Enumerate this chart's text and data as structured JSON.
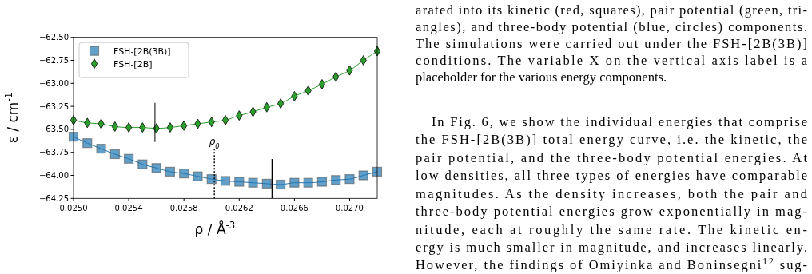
{
  "chart_data": {
    "type": "line",
    "xlabel": "ρ / Å$^{-3}$",
    "ylabel": "ε / cm$^{-1}$",
    "x": [
      0.025,
      0.0251,
      0.0252,
      0.0253,
      0.0254,
      0.0255,
      0.0256,
      0.0257,
      0.0258,
      0.0259,
      0.026,
      0.0261,
      0.0262,
      0.0263,
      0.0264,
      0.0265,
      0.0266,
      0.0267,
      0.0268,
      0.0269,
      0.027,
      0.0271,
      0.0272
    ],
    "series": [
      {
        "name": "FSH-[2B(3B)]",
        "color": "#1f77b4",
        "marker": "square",
        "values": [
          -63.58,
          -63.65,
          -63.71,
          -63.77,
          -63.82,
          -63.88,
          -63.92,
          -63.96,
          -63.98,
          -64.01,
          -64.04,
          -64.06,
          -64.07,
          -64.08,
          -64.09,
          -64.1,
          -64.08,
          -64.08,
          -64.07,
          -64.05,
          -64.04,
          -64.0,
          -63.96
        ]
      },
      {
        "name": "FSH-[2B]",
        "color": "#2ca02c",
        "marker": "diamond",
        "values": [
          -63.4,
          -63.43,
          -63.44,
          -63.47,
          -63.48,
          -63.48,
          -63.49,
          -63.48,
          -63.46,
          -63.44,
          -63.42,
          -63.4,
          -63.35,
          -63.31,
          -63.26,
          -63.22,
          -63.14,
          -63.08,
          -63.01,
          -62.93,
          -62.86,
          -62.75,
          -62.65
        ]
      }
    ],
    "xlim": [
      0.025,
      0.0272
    ],
    "xticks": [
      {
        "value": 0.025,
        "label": "0.0250"
      },
      {
        "value": 0.0254,
        "label": "0.0254"
      },
      {
        "value": 0.0258,
        "label": "0.0258"
      },
      {
        "value": 0.0262,
        "label": "0.0262"
      },
      {
        "value": 0.0266,
        "label": "0.0266"
      },
      {
        "value": 0.027,
        "label": "0.0270"
      }
    ],
    "ylim": [
      -64.25,
      -62.5
    ],
    "yticks": [
      {
        "value": -64.25,
        "label": "−64.25"
      },
      {
        "value": -64.0,
        "label": "−64.00"
      },
      {
        "value": -63.75,
        "label": "−63.75"
      },
      {
        "value": -63.5,
        "label": "−63.50"
      },
      {
        "value": -63.25,
        "label": "−63.25"
      },
      {
        "value": -63.0,
        "label": "−63.00"
      },
      {
        "value": -62.75,
        "label": "−62.75"
      },
      {
        "value": -62.5,
        "label": "−62.50"
      }
    ],
    "ref_lines": [
      {
        "axis": "x",
        "value": 0.02559,
        "color": "#000000",
        "line_style": "solid"
      },
      {
        "axis": "x",
        "value": 0.02644,
        "color": "#000000",
        "line_style": "solid"
      },
      {
        "axis": "x",
        "value": 0.02602,
        "label": "ρ$_{0}$",
        "color": "#000000",
        "line_style": "dotted"
      }
    ],
    "legend": "top left",
    "grid": false,
    "annotations": [
      "arated into its kinetic (red, squares), pair potential (green, tri-",
      "angles), and three-body potential (blue, circles) components.",
      "The simulations were carried out under the FSH-[2B(3B)]",
      "conditions. The variable X on the vertical axis label is a",
      "placeholder for the various energy components.",
      "In Fig. 6, we show the individual energies that comprise",
      "the FSH-[2B(3B)] total energy curve, i.e. the kinetic, the",
      "pair potential, and the three-body potential energies. At",
      "low densities, all three types of energies have comparable",
      "magnitudes. As the density increases, both the pair and",
      "three-body potential energies grow exponentially in mag-",
      "nitude, each at roughly the same rate. The kinetic en-",
      "ergy is much smaller in magnitude, and increases linearly.",
      "However, the findings of Omiyinka and Boninsegni$^{12}$ sug-"
    ]
  }
}
